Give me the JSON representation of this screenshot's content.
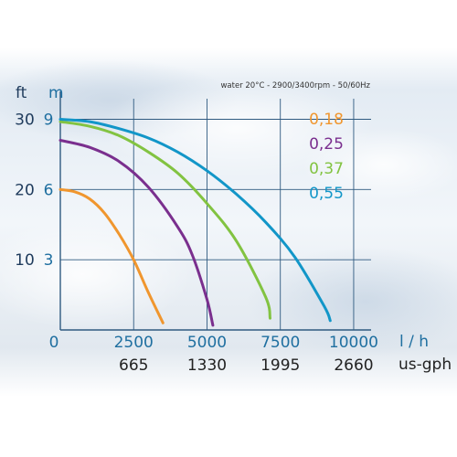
{
  "chart_data": {
    "type": "line",
    "header": "water 20°C - 2900/3400rpm - 50/60Hz",
    "axes": {
      "y_left_unit": "ft",
      "y_right_unit": "m",
      "x_unit": "l / h",
      "x2_unit": "us-gph",
      "y_ft_ticks": [
        "30",
        "20",
        "10"
      ],
      "y_m_ticks": [
        "9",
        "6",
        "3"
      ],
      "x_ticks": [
        "0",
        "2500",
        "5000",
        "7500",
        "10000"
      ],
      "x2_ticks": [
        "665",
        "1330",
        "1995",
        "2660"
      ],
      "xlim": [
        0,
        10500
      ],
      "ylim_m": [
        0,
        9.8
      ]
    },
    "series": [
      {
        "name": "0,18",
        "color": "#f0962e",
        "points": [
          [
            0,
            6.0
          ],
          [
            500,
            5.9
          ],
          [
            1000,
            5.6
          ],
          [
            1500,
            5.0
          ],
          [
            2000,
            4.1
          ],
          [
            2500,
            3.0
          ],
          [
            3000,
            1.6
          ],
          [
            3500,
            0.3
          ]
        ]
      },
      {
        "name": "0,25",
        "color": "#7a2f8e",
        "points": [
          [
            0,
            8.1
          ],
          [
            1000,
            7.8
          ],
          [
            2000,
            7.2
          ],
          [
            3000,
            6.1
          ],
          [
            4000,
            4.4
          ],
          [
            4500,
            3.2
          ],
          [
            5000,
            1.3
          ],
          [
            5200,
            0.2
          ]
        ]
      },
      {
        "name": "0,37",
        "color": "#82c341",
        "points": [
          [
            0,
            8.9
          ],
          [
            1000,
            8.7
          ],
          [
            2000,
            8.3
          ],
          [
            3000,
            7.6
          ],
          [
            4000,
            6.7
          ],
          [
            5000,
            5.4
          ],
          [
            6000,
            3.8
          ],
          [
            7000,
            1.4
          ],
          [
            7150,
            0.5
          ]
        ]
      },
      {
        "name": "0,55",
        "color": "#1296c8",
        "points": [
          [
            0,
            9.0
          ],
          [
            1000,
            8.9
          ],
          [
            2000,
            8.6
          ],
          [
            3000,
            8.2
          ],
          [
            4000,
            7.6
          ],
          [
            5000,
            6.8
          ],
          [
            6000,
            5.8
          ],
          [
            7000,
            4.6
          ],
          [
            8000,
            3.1
          ],
          [
            9000,
            1.0
          ],
          [
            9200,
            0.4
          ]
        ]
      }
    ]
  }
}
